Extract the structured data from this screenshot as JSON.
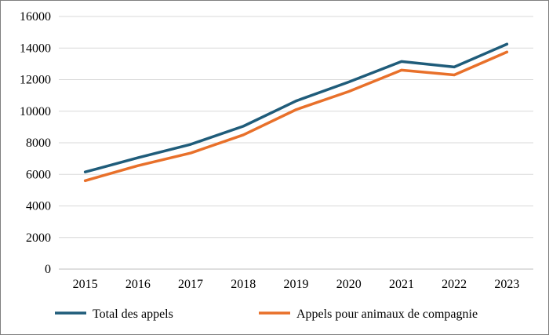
{
  "chart_data": {
    "type": "line",
    "title": "",
    "xlabel": "",
    "ylabel": "",
    "x": [
      "2015",
      "2016",
      "2017",
      "2018",
      "2019",
      "2020",
      "2021",
      "2022",
      "2023"
    ],
    "ylim": [
      0,
      16000
    ],
    "yticks": [
      0,
      2000,
      4000,
      6000,
      8000,
      10000,
      12000,
      14000,
      16000
    ],
    "grid": "horizontal",
    "legend": "bottom",
    "series": [
      {
        "name": "Total des appels",
        "color": "#1f5c7a",
        "values": [
          6150,
          7050,
          7900,
          9050,
          10650,
          11850,
          13150,
          12800,
          14250
        ]
      },
      {
        "name": "Appels pour animaux de compagnie",
        "color": "#e8702a",
        "values": [
          5600,
          6550,
          7350,
          8500,
          10100,
          11250,
          12600,
          12300,
          13750
        ]
      }
    ]
  }
}
